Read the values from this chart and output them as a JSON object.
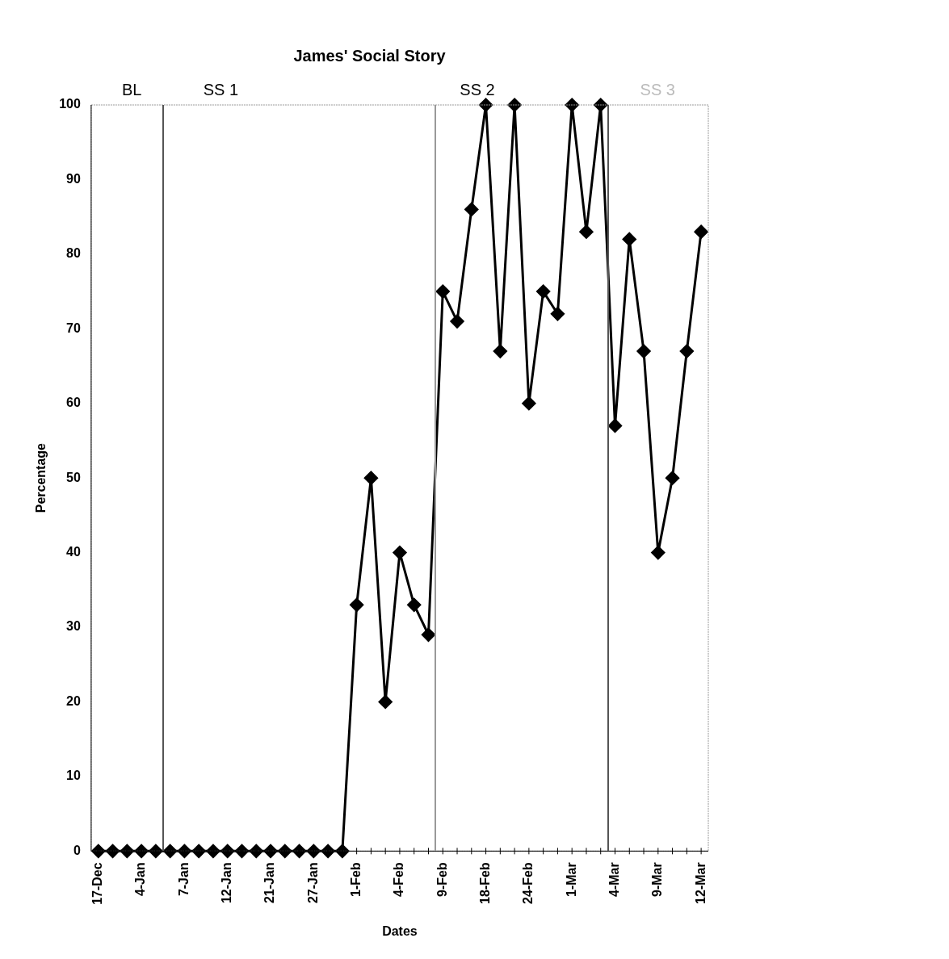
{
  "chart_data": {
    "type": "line",
    "title": "James' Social Story",
    "xlabel": "Dates",
    "ylabel": "Percentage",
    "categories": [
      "17-Dec",
      null,
      null,
      "4-Jan",
      null,
      null,
      "7-Jan",
      null,
      null,
      "12-Jan",
      null,
      null,
      "21-Jan",
      null,
      null,
      "27-Jan",
      null,
      null,
      "1-Feb",
      null,
      null,
      "4-Feb",
      null,
      null,
      "9-Feb",
      null,
      null,
      "18-Feb",
      null,
      null,
      "24-Feb",
      null,
      null,
      "1-Mar",
      null,
      null,
      "4-Mar",
      null,
      null,
      "9-Mar",
      null,
      null,
      "12-Mar"
    ],
    "series": [
      {
        "color": "#000000",
        "values": [
          0,
          0,
          0,
          0,
          0,
          0,
          0,
          0,
          0,
          0,
          0,
          0,
          0,
          0,
          0,
          0,
          0,
          0,
          33,
          50,
          20,
          40,
          33,
          29,
          75,
          71,
          86,
          100,
          67,
          100,
          60,
          75,
          72,
          100,
          83,
          100,
          57,
          82,
          67,
          40,
          50,
          67,
          83
        ]
      }
    ],
    "ylim": [
      0,
      100
    ],
    "yticks": [
      0,
      10,
      20,
      30,
      40,
      50,
      60,
      70,
      80,
      90,
      100
    ],
    "annotations": [
      "BL",
      "SS 1",
      "SS 2",
      "SS 3"
    ],
    "marker": "diamond",
    "line_style": "solid",
    "grid": false,
    "legend": false
  }
}
